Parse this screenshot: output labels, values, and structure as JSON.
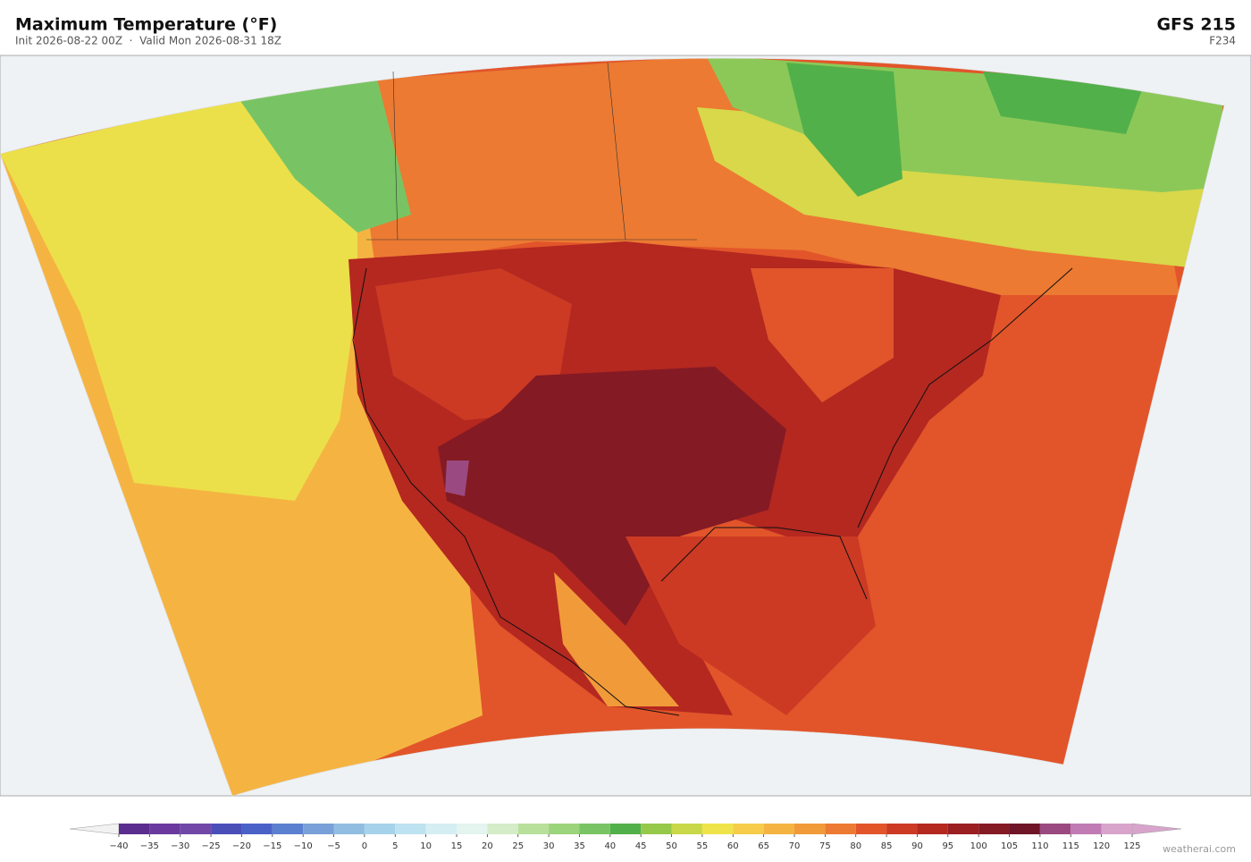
{
  "header": {
    "title": "Maximum Temperature  (°F)",
    "subtitle": "Init 2026-08-22 00Z  ·  Valid Mon 2026-08-31 18Z",
    "model": "GFS  215",
    "forecast_hour": "F234"
  },
  "colorbar": {
    "ticks": [
      {
        "value": -40,
        "label": "−40"
      },
      {
        "value": -35,
        "label": "−35"
      },
      {
        "value": -30,
        "label": "−30"
      },
      {
        "value": -25,
        "label": "−25"
      },
      {
        "value": -20,
        "label": "−20"
      },
      {
        "value": -15,
        "label": "−15"
      },
      {
        "value": -10,
        "label": "−10"
      },
      {
        "value": -5,
        "label": "−5"
      },
      0,
      5,
      10,
      15,
      20,
      25,
      30,
      35,
      40,
      45,
      50,
      55,
      60,
      65,
      70,
      75,
      80,
      85,
      90,
      95,
      100,
      105,
      110,
      115,
      120,
      125
    ],
    "colors": [
      "#5b2d8e",
      "#6a3a9e",
      "#7148a8",
      "#4a4fb8",
      "#4a62c8",
      "#5c80d0",
      "#7aa0d8",
      "#90bde0",
      "#a6d2ea",
      "#bde2f0",
      "#d4eef3",
      "#e4f4ee",
      "#d5ecc8",
      "#b8e09a",
      "#9bd47a",
      "#78c464",
      "#52b04a",
      "#96c84a",
      "#c8d848",
      "#eee44a",
      "#f6cc4a",
      "#f5b442",
      "#f19a3a",
      "#ec7a32",
      "#e2552a",
      "#cc3a24",
      "#b42820",
      "#9a1e22",
      "#841a24",
      "#6e1628",
      "#9a4a80",
      "#c07ab4",
      "#d8a4cc"
    ],
    "under_color": "#f2f2f2",
    "over_color": "#d8a4cc"
  },
  "credit": "weatherai.com"
}
